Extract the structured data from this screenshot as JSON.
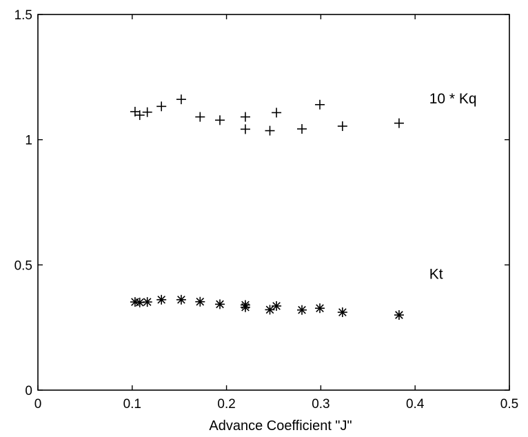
{
  "chart_data": {
    "type": "scatter",
    "title": "",
    "xlabel": "Advance Coefficient  \"J\"",
    "ylabel": "",
    "xlim": [
      0,
      0.5
    ],
    "ylim": [
      0,
      1.5
    ],
    "x_ticks": [
      {
        "value": 0,
        "label": "0"
      },
      {
        "value": 0.1,
        "label": "0.1"
      },
      {
        "value": 0.2,
        "label": "0.2"
      },
      {
        "value": 0.3,
        "label": "0.3"
      },
      {
        "value": 0.4,
        "label": "0.4"
      },
      {
        "value": 0.5,
        "label": "0.5"
      }
    ],
    "y_ticks": [
      {
        "value": 0,
        "label": "0"
      },
      {
        "value": 0.5,
        "label": "0.5"
      },
      {
        "value": 1,
        "label": "1"
      },
      {
        "value": 1.5,
        "label": "1.5"
      }
    ],
    "grid": false,
    "series": [
      {
        "name": "10 * Kq",
        "marker": "plus",
        "x": [
          0.103,
          0.108,
          0.116,
          0.131,
          0.152,
          0.172,
          0.193,
          0.22,
          0.22,
          0.246,
          0.253,
          0.28,
          0.299,
          0.323,
          0.383
        ],
        "y": [
          1.112,
          1.098,
          1.11,
          1.133,
          1.161,
          1.091,
          1.078,
          1.091,
          1.042,
          1.036,
          1.108,
          1.043,
          1.14,
          1.054,
          1.066
        ]
      },
      {
        "name": "Kt",
        "marker": "asterisk",
        "x": [
          0.103,
          0.108,
          0.116,
          0.131,
          0.152,
          0.172,
          0.193,
          0.22,
          0.22,
          0.246,
          0.253,
          0.28,
          0.299,
          0.323,
          0.383
        ],
        "y": [
          0.352,
          0.35,
          0.352,
          0.361,
          0.361,
          0.353,
          0.343,
          0.34,
          0.331,
          0.321,
          0.336,
          0.32,
          0.327,
          0.311,
          0.3
        ]
      }
    ],
    "series_labels": [
      {
        "text": "10 * Kq",
        "at": [
          0.415,
          1.145
        ]
      },
      {
        "text": "Kt",
        "at": [
          0.415,
          0.445
        ]
      }
    ]
  }
}
